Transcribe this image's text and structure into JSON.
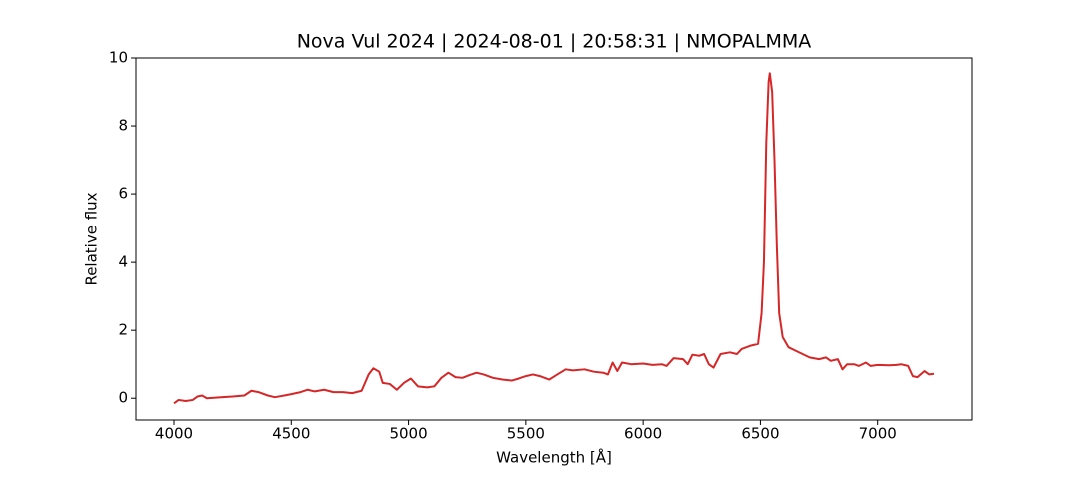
{
  "chart_data": {
    "type": "line",
    "title": "Nova Vul 2024 | 2024-08-01 | 20:58:31 | NMOPALMMA",
    "xlabel": "Wavelength [Å]",
    "ylabel": "Relative flux",
    "x": [
      4000,
      4020,
      4050,
      4080,
      4100,
      4120,
      4140,
      4200,
      4250,
      4300,
      4330,
      4360,
      4400,
      4430,
      4470,
      4500,
      4540,
      4570,
      4600,
      4640,
      4680,
      4720,
      4760,
      4800,
      4830,
      4850,
      4875,
      4890,
      4920,
      4950,
      4980,
      5010,
      5040,
      5080,
      5110,
      5140,
      5170,
      5200,
      5230,
      5260,
      5290,
      5320,
      5360,
      5400,
      5440,
      5470,
      5500,
      5530,
      5560,
      5600,
      5630,
      5670,
      5700,
      5750,
      5790,
      5830,
      5850,
      5870,
      5890,
      5910,
      5950,
      6000,
      6040,
      6080,
      6100,
      6130,
      6170,
      6190,
      6210,
      6240,
      6260,
      6280,
      6300,
      6330,
      6370,
      6400,
      6420,
      6460,
      6490,
      6505,
      6515,
      6525,
      6535,
      6540,
      6550,
      6560,
      6570,
      6580,
      6595,
      6620,
      6650,
      6680,
      6710,
      6750,
      6780,
      6800,
      6830,
      6850,
      6870,
      6900,
      6920,
      6950,
      6970,
      7000,
      7050,
      7080,
      7100,
      7130,
      7150,
      7170,
      7200,
      7220,
      7240
    ],
    "series": [
      {
        "name": "Nova Vul 2024",
        "color": "#d62728",
        "values": [
          -0.15,
          -0.05,
          -0.08,
          -0.05,
          0.05,
          0.08,
          0.0,
          0.03,
          0.05,
          0.08,
          0.22,
          0.18,
          0.08,
          0.03,
          0.08,
          0.12,
          0.18,
          0.25,
          0.2,
          0.25,
          0.18,
          0.18,
          0.15,
          0.22,
          0.7,
          0.88,
          0.78,
          0.45,
          0.42,
          0.25,
          0.45,
          0.58,
          0.35,
          0.32,
          0.35,
          0.6,
          0.75,
          0.62,
          0.6,
          0.68,
          0.75,
          0.7,
          0.6,
          0.55,
          0.52,
          0.58,
          0.65,
          0.7,
          0.65,
          0.55,
          0.68,
          0.85,
          0.82,
          0.85,
          0.78,
          0.75,
          0.7,
          1.05,
          0.8,
          1.05,
          1.0,
          1.02,
          0.98,
          1.0,
          0.95,
          1.18,
          1.15,
          1.0,
          1.28,
          1.25,
          1.3,
          1.0,
          0.9,
          1.3,
          1.35,
          1.3,
          1.45,
          1.55,
          1.6,
          2.5,
          4.0,
          7.5,
          9.3,
          9.55,
          9.0,
          7.0,
          4.5,
          2.5,
          1.8,
          1.5,
          1.4,
          1.3,
          1.2,
          1.15,
          1.2,
          1.1,
          1.15,
          0.85,
          1.0,
          1.0,
          0.95,
          1.05,
          0.95,
          0.98,
          0.97,
          0.98,
          1.0,
          0.95,
          0.65,
          0.62,
          0.8,
          0.7,
          0.72
        ]
      }
    ],
    "xlim": [
      3838,
      7402
    ],
    "ylim": [
      -0.64,
      10.0
    ],
    "xticks": [
      4000,
      4500,
      5000,
      5500,
      6000,
      6500,
      7000
    ],
    "yticks": [
      0,
      2,
      4,
      6,
      8,
      10
    ]
  }
}
